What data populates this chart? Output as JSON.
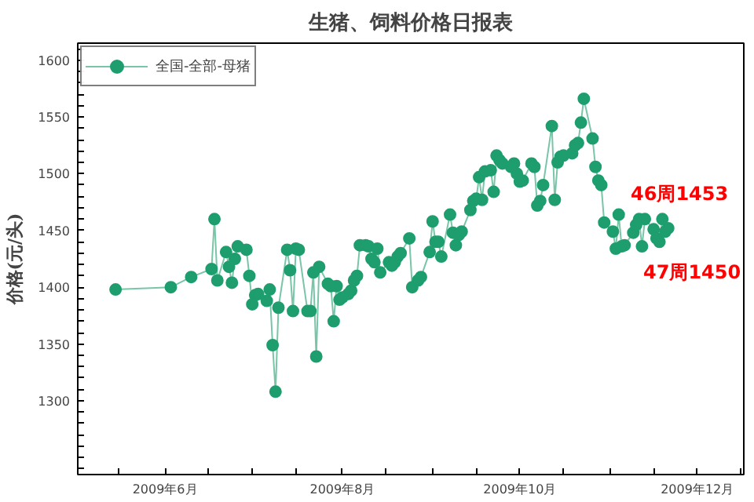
{
  "chart_data": {
    "type": "line",
    "title": "生猪、饲料价格日报表",
    "ylabel": "价格(元/头)",
    "legend": "top left",
    "marker": "circle",
    "line_style": "solid",
    "grid": false,
    "annotations": [
      "46周1453",
      "47周1450"
    ],
    "xlim": [
      "2009-05-02",
      "2009-12-17"
    ],
    "xticks": [
      {
        "value": "2009-05-16",
        "label": null
      },
      {
        "value": "2009-06-01",
        "label": "2009年6月"
      },
      {
        "value": "2009-06-16",
        "label": null
      },
      {
        "value": "2009-07-01",
        "label": null
      },
      {
        "value": "2009-07-16",
        "label": null
      },
      {
        "value": "2009-08-01",
        "label": "2009年8月"
      },
      {
        "value": "2009-08-16",
        "label": null
      },
      {
        "value": "2009-09-01",
        "label": null
      },
      {
        "value": "2009-09-16",
        "label": null
      },
      {
        "value": "2009-10-01",
        "label": "2009年10月"
      },
      {
        "value": "2009-10-16",
        "label": null
      },
      {
        "value": "2009-11-01",
        "label": null
      },
      {
        "value": "2009-11-16",
        "label": null
      },
      {
        "value": "2009-12-01",
        "label": "2009年12月"
      },
      {
        "value": "2009-12-16",
        "label": null
      }
    ],
    "ylim": [
      1235,
      1615
    ],
    "yticks": [
      {
        "value": 1240,
        "label": null
      },
      {
        "value": 1250,
        "label": null
      },
      {
        "value": 1260,
        "label": null
      },
      {
        "value": 1270,
        "label": null
      },
      {
        "value": 1280,
        "label": null
      },
      {
        "value": 1290,
        "label": null
      },
      1300,
      {
        "value": 1310,
        "label": null
      },
      {
        "value": 1320,
        "label": null
      },
      {
        "value": 1330,
        "label": null
      },
      {
        "value": 1340,
        "label": null
      },
      1350,
      {
        "value": 1360,
        "label": null
      },
      {
        "value": 1370,
        "label": null
      },
      {
        "value": 1380,
        "label": null
      },
      {
        "value": 1390,
        "label": null
      },
      1400,
      {
        "value": 1410,
        "label": null
      },
      {
        "value": 1420,
        "label": null
      },
      {
        "value": 1430,
        "label": null
      },
      {
        "value": 1440,
        "label": null
      },
      1450,
      {
        "value": 1460,
        "label": null
      },
      {
        "value": 1470,
        "label": null
      },
      {
        "value": 1480,
        "label": null
      },
      {
        "value": 1490,
        "label": null
      },
      1500,
      {
        "value": 1510,
        "label": null
      },
      {
        "value": 1520,
        "label": null
      },
      {
        "value": 1530,
        "label": null
      },
      {
        "value": 1540,
        "label": null
      },
      1550,
      {
        "value": 1560,
        "label": null
      },
      {
        "value": 1570,
        "label": null
      },
      {
        "value": 1580,
        "label": null
      },
      {
        "value": 1590,
        "label": null
      },
      1600,
      {
        "value": 1610,
        "label": null
      }
    ],
    "x": [
      "2009-05-15",
      "2009-06-03",
      "2009-06-10",
      "2009-06-17",
      "2009-06-18",
      "2009-06-19",
      "2009-06-22",
      "2009-06-23",
      "2009-06-24",
      "2009-06-25",
      "2009-06-26",
      "2009-06-29",
      "2009-06-30",
      "2009-07-01",
      "2009-07-02",
      "2009-07-03",
      "2009-07-06",
      "2009-07-07",
      "2009-07-08",
      "2009-07-09",
      "2009-07-10",
      "2009-07-13",
      "2009-07-14",
      "2009-07-15",
      "2009-07-16",
      "2009-07-17",
      "2009-07-20",
      "2009-07-21",
      "2009-07-22",
      "2009-07-23",
      "2009-07-24",
      "2009-07-27",
      "2009-07-28",
      "2009-07-29",
      "2009-07-30",
      "2009-07-31",
      "2009-08-01",
      "2009-08-03",
      "2009-08-04",
      "2009-08-05",
      "2009-08-06",
      "2009-08-07",
      "2009-08-09",
      "2009-08-10",
      "2009-08-11",
      "2009-08-12",
      "2009-08-13",
      "2009-08-14",
      "2009-08-17",
      "2009-08-18",
      "2009-08-19",
      "2009-08-20",
      "2009-08-21",
      "2009-08-24",
      "2009-08-25",
      "2009-08-27",
      "2009-08-28",
      "2009-08-31",
      "2009-09-01",
      "2009-09-02",
      "2009-09-03",
      "2009-09-04",
      "2009-09-07",
      "2009-09-08",
      "2009-09-09",
      "2009-09-10",
      "2009-09-11",
      "2009-09-14",
      "2009-09-15",
      "2009-09-16",
      "2009-09-17",
      "2009-09-18",
      "2009-09-19",
      "2009-09-21",
      "2009-09-22",
      "2009-09-23",
      "2009-09-24",
      "2009-09-25",
      "2009-09-28",
      "2009-09-29",
      "2009-09-30",
      "2009-10-01",
      "2009-10-02",
      "2009-10-05",
      "2009-10-06",
      "2009-10-07",
      "2009-10-08",
      "2009-10-09",
      "2009-10-12",
      "2009-10-13",
      "2009-10-14",
      "2009-10-15",
      "2009-10-16",
      "2009-10-19",
      "2009-10-20",
      "2009-10-21",
      "2009-10-22",
      "2009-10-23",
      "2009-10-26",
      "2009-10-27",
      "2009-10-28",
      "2009-10-29",
      "2009-10-30",
      "2009-11-02",
      "2009-11-03",
      "2009-11-04",
      "2009-11-05",
      "2009-11-06",
      "2009-11-09",
      "2009-11-10",
      "2009-11-11",
      "2009-11-12",
      "2009-11-13",
      "2009-11-16",
      "2009-11-17",
      "2009-11-18",
      "2009-11-19",
      "2009-11-20",
      "2009-11-21"
    ],
    "series": [
      {
        "name": "全国-全部-母猪",
        "color": "#1e9e6e",
        "values": [
          1398,
          1400,
          1409,
          1416,
          1460,
          1406,
          1431,
          1418,
          1404,
          1425,
          1436,
          1433,
          1410,
          1385,
          1393,
          1394,
          1388,
          1398,
          1349,
          1308,
          1382,
          1433,
          1415,
          1379,
          1434,
          1433,
          1379,
          1379,
          1413,
          1339,
          1418,
          1403,
          1401,
          1370,
          1401,
          1389,
          1391,
          1394,
          1397,
          1406,
          1410,
          1437,
          1437,
          1436,
          1425,
          1422,
          1434,
          1413,
          1422,
          1419,
          1422,
          1427,
          1430,
          1443,
          1400,
          1406,
          1409,
          1431,
          1458,
          1440,
          1440,
          1427,
          1464,
          1448,
          1437,
          1446,
          1449,
          1468,
          1476,
          1478,
          1497,
          1477,
          1502,
          1503,
          1484,
          1516,
          1512,
          1509,
          1506,
          1509,
          1500,
          1493,
          1494,
          1509,
          1506,
          1472,
          1476,
          1490,
          1542,
          1477,
          1510,
          1515,
          1516,
          1518,
          1525,
          1527,
          1545,
          1566,
          1531,
          1506,
          1494,
          1490,
          1457,
          1449,
          1434,
          1464,
          1436,
          1437,
          1448,
          1455,
          1460,
          1436,
          1460,
          1451,
          1443,
          1440,
          1460,
          1449,
          1452
        ]
      }
    ]
  }
}
